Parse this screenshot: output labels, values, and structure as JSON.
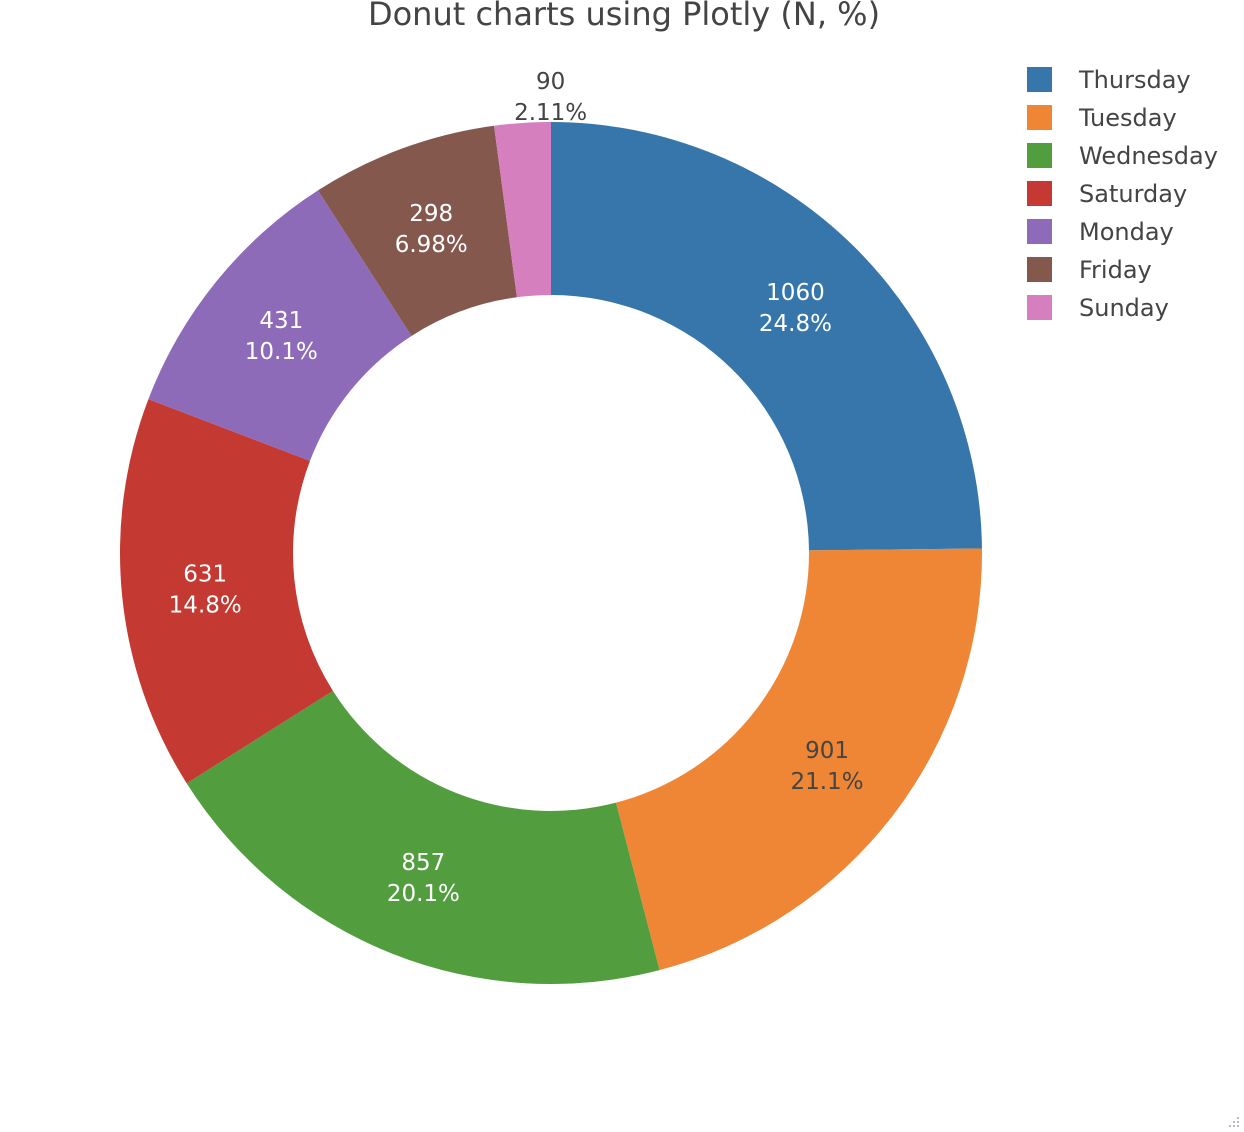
{
  "chart_data": {
    "type": "pie",
    "hole": true,
    "title": "Donut charts using Plotly (N, %)",
    "categories": [
      "Thursday",
      "Tuesday",
      "Wednesday",
      "Saturday",
      "Monday",
      "Friday",
      "Sunday"
    ],
    "values": [
      1060,
      901,
      857,
      631,
      431,
      298,
      90
    ],
    "percent_labels": [
      "24.8%",
      "21.1%",
      "20.1%",
      "14.8%",
      "10.1%",
      "6.98%",
      "2.11%"
    ],
    "colors": [
      "#3776ab",
      "#ef8636",
      "#529e3f",
      "#c43932",
      "#8d6bb8",
      "#85584e",
      "#d57fbe"
    ],
    "slice_label_colors": [
      "#ffffff",
      "#444444",
      "#ffffff",
      "#ffffff",
      "#ffffff",
      "#ffffff",
      "#444444"
    ],
    "legend_position": "top-right",
    "direction": "clockwise",
    "start_angle": "12 o'clock"
  }
}
